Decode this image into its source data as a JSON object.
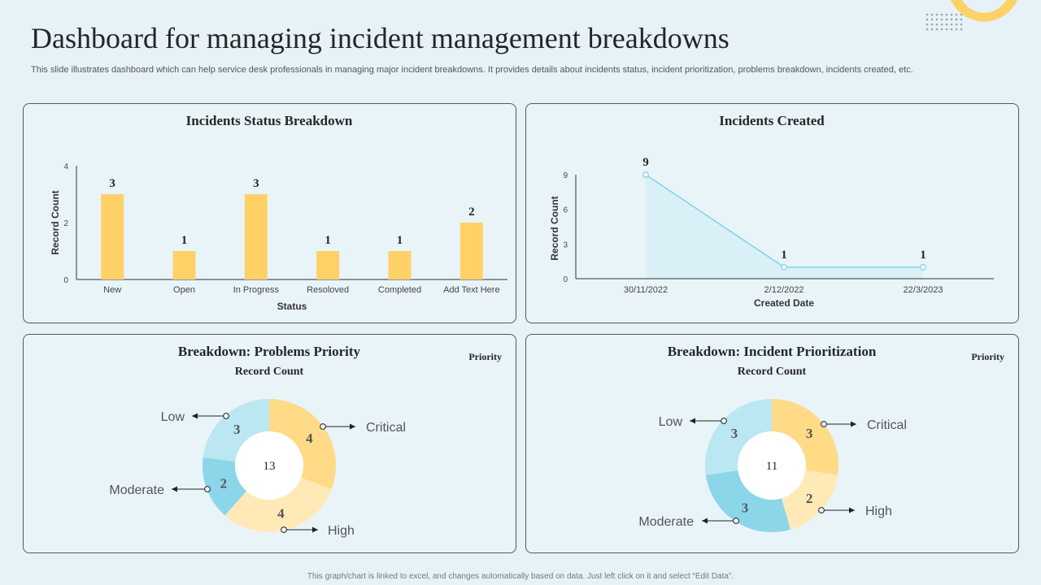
{
  "page": {
    "title": "Dashboard for managing incident management breakdowns",
    "subtitle": "This slide illustrates dashboard which can help service desk professionals in managing major incident breakdowns. It provides details about incidents status, incident prioritization, problems breakdown, incidents created, etc.",
    "footer": "This graph/chart is linked to excel, and changes automatically based on data. Just left click on it and select “Edit Data”."
  },
  "colors": {
    "bar": "#ffd166",
    "line": "#7fd3e6",
    "area": "#d6eef6",
    "critical": "#ffd166",
    "high": "#ffe4a3",
    "moderate": "#6ccbe4",
    "low": "#a8e0ef"
  },
  "chart_data": [
    {
      "type": "bar",
      "title": "Incidents Status Breakdown",
      "xlabel": "Status",
      "ylabel": "Record Count",
      "categories": [
        "New",
        "Open",
        "In Progress",
        "Resoloved",
        "Completed",
        "Add Text Here"
      ],
      "values": [
        3,
        1,
        3,
        1,
        1,
        2
      ],
      "ylim": [
        0,
        4
      ],
      "yticks": [
        0,
        2,
        4
      ]
    },
    {
      "type": "area",
      "title": "Incidents Created",
      "xlabel": "Created Date",
      "ylabel": "Record Count",
      "categories": [
        "30/11/2022",
        "2/12/2022",
        "22/3/2023"
      ],
      "values": [
        9,
        1,
        1
      ],
      "ylim": [
        0,
        9
      ],
      "yticks": [
        0,
        3,
        6,
        9
      ]
    },
    {
      "type": "pie",
      "title": "Breakdown: Problems Priority",
      "subtitle": "Record Count",
      "legend_title": "Priority",
      "total": 13,
      "slices": [
        {
          "label": "Critical",
          "value": 4
        },
        {
          "label": "High",
          "value": 4
        },
        {
          "label": "Moderate",
          "value": 2
        },
        {
          "label": "Low",
          "value": 3
        }
      ]
    },
    {
      "type": "pie",
      "title": "Breakdown: Incident Prioritization",
      "subtitle": "Record Count",
      "legend_title": "Priority",
      "total": 11,
      "slices": [
        {
          "label": "Critical",
          "value": 3
        },
        {
          "label": "High",
          "value": 2
        },
        {
          "label": "Moderate",
          "value": 3
        },
        {
          "label": "Low",
          "value": 3
        }
      ]
    }
  ]
}
